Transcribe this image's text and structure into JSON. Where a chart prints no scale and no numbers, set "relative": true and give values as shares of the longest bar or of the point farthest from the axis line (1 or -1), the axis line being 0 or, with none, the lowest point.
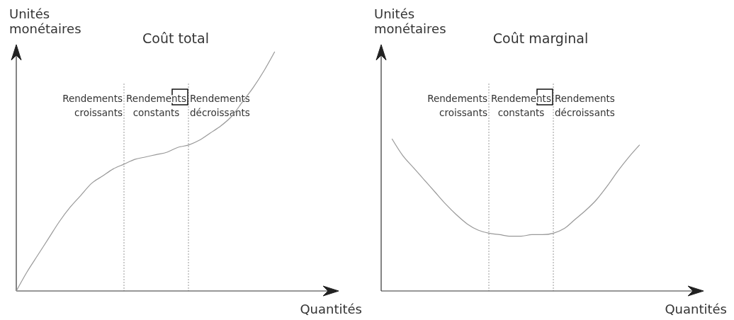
{
  "chart_data": [
    {
      "type": "line",
      "title": "Coût total",
      "xlabel": "Quantités",
      "ylabel": "Unités\nmonétaires",
      "relative": true,
      "marker": "none",
      "line_style": "solid",
      "categories": [
        null,
        null,
        null,
        null,
        null,
        null,
        null,
        null,
        null,
        null,
        null,
        null,
        null,
        null,
        null,
        null,
        null,
        null,
        null,
        null,
        null,
        null,
        null,
        null,
        null,
        null,
        null,
        null,
        null,
        null
      ],
      "series": [
        {
          "color": "#999999",
          "values": [
            0,
            0.08,
            0.15,
            0.22,
            0.29,
            0.35,
            0.4,
            0.45,
            0.48,
            0.51,
            0.53,
            0.55,
            0.56,
            0.57,
            0.58,
            0.6,
            0.61,
            0.63,
            0.66,
            0.69,
            0.73,
            0.79,
            0.85,
            0.92,
            1,
            null,
            null,
            null,
            null,
            null
          ]
        }
      ],
      "annotations": [
        "Rendements\ncroissants",
        "Rendements\nconstants",
        "Rendements\ndécroissants"
      ]
    },
    {
      "type": "line",
      "title": "Coût marginal",
      "xlabel": "Quantités",
      "ylabel": "Unités\nmonétaires",
      "relative": true,
      "marker": "none",
      "line_style": "solid",
      "categories": [
        null,
        null,
        null,
        null,
        null,
        null,
        null,
        null,
        null,
        null,
        null,
        null,
        null,
        null,
        null,
        null,
        null,
        null,
        null,
        null,
        null,
        null,
        null,
        null,
        null,
        null,
        null,
        null,
        null,
        null
      ],
      "series": [
        {
          "color": "#999999",
          "values": [
            null,
            1,
            0.89,
            0.81,
            0.73,
            0.65,
            0.57,
            0.5,
            0.44,
            0.4,
            0.38,
            0.37,
            0.36,
            0.36,
            0.37,
            0.37,
            0.38,
            0.41,
            0.47,
            0.53,
            0.6,
            0.69,
            0.79,
            0.88,
            0.96,
            null,
            null,
            null,
            null,
            null
          ]
        }
      ],
      "annotations": [
        "Rendements\ncroissants",
        "Rendements\nconstants",
        "Rendements\ndécroissants"
      ]
    }
  ]
}
